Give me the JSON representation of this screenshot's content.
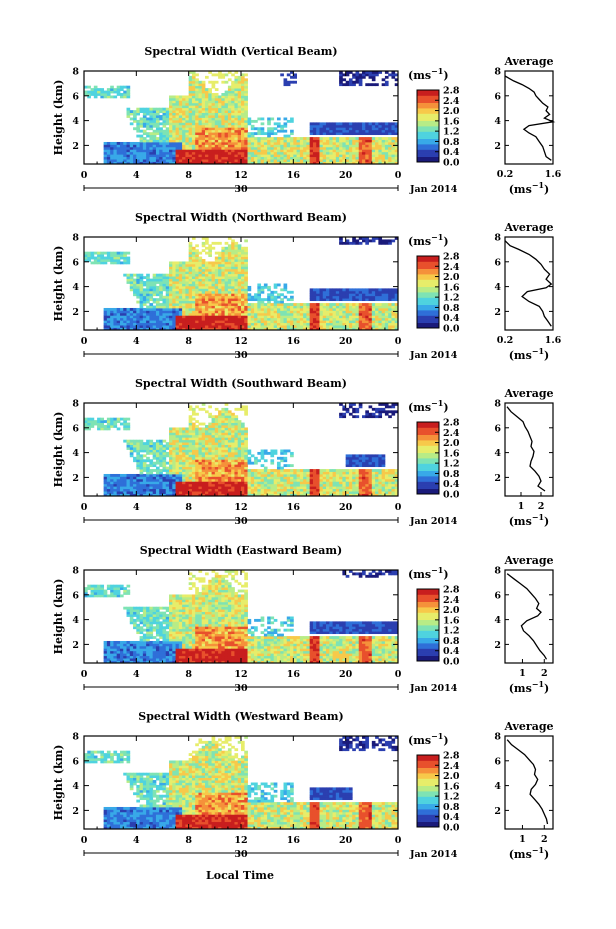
{
  "figure": {
    "x_axis_title": "Local Time",
    "date_label": "Jan 2014",
    "day_tick_label": "30",
    "cbar_unit": "(ms",
    "cbar_unit_exp": "−1",
    "profile_title": "Average",
    "profile_xunit": "(ms",
    "profile_xunit_exp": "−1"
  },
  "colors": {
    "colormap": [
      "#1a1a7a",
      "#2b3fb0",
      "#2f6fd8",
      "#38a9e8",
      "#4fd3df",
      "#7ee3b4",
      "#b8ec86",
      "#e7ed6a",
      "#f7c94a",
      "#f5913a",
      "#e8502c",
      "#c81e1e"
    ],
    "background": "#ffffff"
  },
  "chart_data": [
    {
      "type": "heatmap",
      "title": "Spectral Width (Vertical Beam)",
      "xlabel": "Local Time",
      "ylabel": "Height (km)",
      "x_ticks": [
        "0",
        "4",
        "8",
        "12",
        "16",
        "20",
        "0"
      ],
      "y_ticks": [
        "2",
        "4",
        "6",
        "8"
      ],
      "xlim": [
        0,
        24
      ],
      "ylim": [
        0.5,
        8
      ],
      "colorbar": {
        "ticks": [
          "0.0",
          "0.4",
          "0.8",
          "1.2",
          "1.6",
          "2.0",
          "2.4",
          "2.8"
        ],
        "range": [
          0,
          2.8
        ]
      },
      "profile": {
        "title": "Average",
        "x_ticks": [
          "0.2",
          "1.6"
        ],
        "y_ticks": [
          "2",
          "4",
          "6",
          "8"
        ],
        "xlim": [
          0.2,
          1.6
        ],
        "ylim": [
          0.5,
          8
        ],
        "points": [
          [
            0.2,
            7.6
          ],
          [
            0.45,
            7.2
          ],
          [
            0.7,
            6.9
          ],
          [
            0.9,
            6.6
          ],
          [
            1.05,
            6.3
          ],
          [
            1.1,
            6.0
          ],
          [
            1.2,
            5.7
          ],
          [
            1.3,
            5.4
          ],
          [
            1.45,
            5.1
          ],
          [
            1.4,
            4.8
          ],
          [
            1.5,
            4.5
          ],
          [
            1.35,
            4.2
          ],
          [
            1.6,
            3.9
          ],
          [
            0.9,
            3.6
          ],
          [
            0.75,
            3.3
          ],
          [
            0.9,
            3.0
          ],
          [
            1.1,
            2.7
          ],
          [
            1.2,
            2.3
          ],
          [
            1.3,
            1.9
          ],
          [
            1.35,
            1.5
          ],
          [
            1.4,
            1.1
          ],
          [
            1.55,
            0.8
          ]
        ]
      }
    },
    {
      "type": "heatmap",
      "title": "Spectral Width (Northward Beam)",
      "xlabel": "Local Time",
      "ylabel": "Height (km)",
      "x_ticks": [
        "0",
        "4",
        "8",
        "12",
        "16",
        "20",
        "0"
      ],
      "y_ticks": [
        "2",
        "4",
        "6",
        "8"
      ],
      "xlim": [
        0,
        24
      ],
      "ylim": [
        0.5,
        8
      ],
      "colorbar": {
        "ticks": [
          "0.0",
          "0.4",
          "0.8",
          "1.2",
          "1.6",
          "2.0",
          "2.4",
          "2.8"
        ],
        "range": [
          0,
          2.8
        ]
      },
      "profile": {
        "title": "Average",
        "x_ticks": [
          "0.2",
          "1.6"
        ],
        "y_ticks": [
          "2",
          "4",
          "6",
          "8"
        ],
        "xlim": [
          0.2,
          1.6
        ],
        "ylim": [
          0.5,
          8
        ],
        "points": [
          [
            0.2,
            7.7
          ],
          [
            0.35,
            7.3
          ],
          [
            0.6,
            7.0
          ],
          [
            0.9,
            6.6
          ],
          [
            1.1,
            6.2
          ],
          [
            1.25,
            5.8
          ],
          [
            1.35,
            5.4
          ],
          [
            1.5,
            5.0
          ],
          [
            1.4,
            4.6
          ],
          [
            1.55,
            4.2
          ],
          [
            1.4,
            3.9
          ],
          [
            0.85,
            3.6
          ],
          [
            0.7,
            3.2
          ],
          [
            0.9,
            2.8
          ],
          [
            1.2,
            2.4
          ],
          [
            1.3,
            2.0
          ],
          [
            1.35,
            1.6
          ],
          [
            1.45,
            1.2
          ],
          [
            1.55,
            0.8
          ]
        ]
      }
    },
    {
      "type": "heatmap",
      "title": "Spectral Width (Southward Beam)",
      "xlabel": "Local Time",
      "ylabel": "Height (km)",
      "x_ticks": [
        "0",
        "4",
        "8",
        "12",
        "16",
        "20",
        "0"
      ],
      "y_ticks": [
        "2",
        "4",
        "6",
        "8"
      ],
      "xlim": [
        0,
        24
      ],
      "ylim": [
        0.5,
        8
      ],
      "colorbar": {
        "ticks": [
          "0.0",
          "0.4",
          "0.8",
          "1.2",
          "1.6",
          "2.0",
          "2.4",
          "2.8"
        ],
        "range": [
          0,
          2.8
        ]
      },
      "profile": {
        "title": "Average",
        "x_ticks": [
          "1",
          "2"
        ],
        "y_ticks": [
          "2",
          "4",
          "6",
          "8"
        ],
        "xlim": [
          0.2,
          2.6
        ],
        "ylim": [
          0.5,
          8
        ],
        "points": [
          [
            0.3,
            7.7
          ],
          [
            0.5,
            7.3
          ],
          [
            0.8,
            6.9
          ],
          [
            1.1,
            6.5
          ],
          [
            1.2,
            6.1
          ],
          [
            1.35,
            5.7
          ],
          [
            1.45,
            5.3
          ],
          [
            1.55,
            4.9
          ],
          [
            1.5,
            4.5
          ],
          [
            1.65,
            4.1
          ],
          [
            1.6,
            3.7
          ],
          [
            1.5,
            3.3
          ],
          [
            1.45,
            2.9
          ],
          [
            1.7,
            2.5
          ],
          [
            1.9,
            2.1
          ],
          [
            2.0,
            1.7
          ],
          [
            1.85,
            1.3
          ],
          [
            2.2,
            0.9
          ]
        ]
      }
    },
    {
      "type": "heatmap",
      "title": "Spectral Width (Eastward Beam)",
      "xlabel": "Local Time",
      "ylabel": "Height (km)",
      "x_ticks": [
        "0",
        "4",
        "8",
        "12",
        "16",
        "20",
        "0"
      ],
      "y_ticks": [
        "2",
        "4",
        "6",
        "8"
      ],
      "xlim": [
        0,
        24
      ],
      "ylim": [
        0.5,
        8
      ],
      "colorbar": {
        "ticks": [
          "0.0",
          "0.4",
          "0.8",
          "1.2",
          "1.6",
          "2.0",
          "2.4",
          "2.8"
        ],
        "range": [
          0,
          2.8
        ]
      },
      "profile": {
        "title": "Average",
        "x_ticks": [
          "1",
          "2"
        ],
        "y_ticks": [
          "2",
          "4",
          "6",
          "8"
        ],
        "xlim": [
          0.2,
          2.4
        ],
        "ylim": [
          0.5,
          8
        ],
        "points": [
          [
            0.3,
            7.7
          ],
          [
            0.6,
            7.3
          ],
          [
            0.9,
            6.9
          ],
          [
            1.2,
            6.5
          ],
          [
            1.4,
            6.1
          ],
          [
            1.6,
            5.7
          ],
          [
            1.75,
            5.3
          ],
          [
            1.65,
            4.9
          ],
          [
            1.85,
            4.6
          ],
          [
            1.7,
            4.3
          ],
          [
            1.2,
            3.9
          ],
          [
            0.95,
            3.5
          ],
          [
            1.05,
            3.1
          ],
          [
            1.3,
            2.7
          ],
          [
            1.5,
            2.3
          ],
          [
            1.65,
            1.9
          ],
          [
            1.8,
            1.5
          ],
          [
            2.0,
            1.1
          ],
          [
            2.1,
            0.8
          ]
        ]
      }
    },
    {
      "type": "heatmap",
      "title": "Spectral Width (Westward Beam)",
      "xlabel": "Local Time",
      "ylabel": "Height (km)",
      "x_ticks": [
        "0",
        "4",
        "8",
        "12",
        "16",
        "20",
        "0"
      ],
      "y_ticks": [
        "2",
        "4",
        "6",
        "8"
      ],
      "xlim": [
        0,
        24
      ],
      "ylim": [
        0.5,
        8
      ],
      "colorbar": {
        "ticks": [
          "0.0",
          "0.4",
          "0.8",
          "1.2",
          "1.6",
          "2.0",
          "2.4",
          "2.8"
        ],
        "range": [
          0,
          2.8
        ]
      },
      "profile": {
        "title": "Average",
        "x_ticks": [
          "1",
          "2"
        ],
        "y_ticks": [
          "2",
          "4",
          "6",
          "8"
        ],
        "xlim": [
          0.2,
          2.4
        ],
        "ylim": [
          0.5,
          8
        ],
        "points": [
          [
            0.3,
            7.7
          ],
          [
            0.5,
            7.3
          ],
          [
            0.8,
            6.9
          ],
          [
            1.1,
            6.5
          ],
          [
            1.3,
            6.1
          ],
          [
            1.5,
            5.7
          ],
          [
            1.6,
            5.3
          ],
          [
            1.55,
            4.9
          ],
          [
            1.7,
            4.5
          ],
          [
            1.6,
            4.1
          ],
          [
            1.4,
            3.7
          ],
          [
            1.35,
            3.3
          ],
          [
            1.55,
            2.9
          ],
          [
            1.75,
            2.5
          ],
          [
            1.9,
            2.1
          ],
          [
            2.0,
            1.7
          ],
          [
            2.1,
            1.3
          ],
          [
            2.15,
            0.9
          ]
        ]
      }
    }
  ]
}
